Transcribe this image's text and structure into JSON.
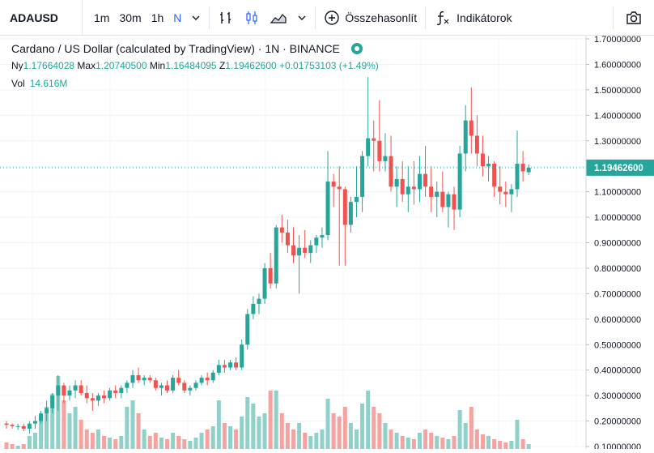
{
  "toolbar": {
    "symbol": "ADAUSD",
    "intervals": [
      {
        "label": "1m",
        "active": false
      },
      {
        "label": "30m",
        "active": false
      },
      {
        "label": "1h",
        "active": false
      },
      {
        "label": "N",
        "active": true
      }
    ],
    "compare_label": "Összehasonlít",
    "indicators_label": "Indikátorok"
  },
  "legend": {
    "title": "Cardano / US Dollar (calculated by TradingView) · 1N · BINANCE",
    "open_label": "Ny",
    "open_value": "1.17664028",
    "high_label": "Max",
    "high_value": "1.20740500",
    "low_label": "Min",
    "low_value": "1.16484095",
    "close_label": "Z",
    "close_value": "1.19462600",
    "change_value": "+0.01753103 (+1.49%)",
    "vol_label": "Vol",
    "vol_value": "14.616M"
  },
  "colors": {
    "up": "#26a69a",
    "down": "#ef5350",
    "up_vol": "#8fd1c9",
    "down_vol": "#f5a3a1"
  },
  "chart_data": {
    "type": "candlestick",
    "y_axis_ticks": [
      "1.70000000",
      "1.60000000",
      "1.50000000",
      "1.40000000",
      "1.30000000",
      "1.20000000",
      "1.10000000",
      "1.00000000",
      "0.90000000",
      "0.80000000",
      "0.70000000",
      "0.60000000",
      "0.50000000",
      "0.40000000",
      "0.30000000",
      "0.20000000",
      "0.10000000"
    ],
    "ylim": [
      0.1,
      1.7
    ],
    "last_price_label": "1.19462600",
    "last_price": 1.194626,
    "candles": [
      {
        "o": 0.19,
        "h": 0.2,
        "l": 0.17,
        "c": 0.185,
        "v": 0.04
      },
      {
        "o": 0.185,
        "h": 0.19,
        "l": 0.17,
        "c": 0.18,
        "v": 0.03
      },
      {
        "o": 0.18,
        "h": 0.19,
        "l": 0.165,
        "c": 0.18,
        "v": 0.02
      },
      {
        "o": 0.18,
        "h": 0.19,
        "l": 0.16,
        "c": 0.17,
        "v": 0.03
      },
      {
        "o": 0.17,
        "h": 0.2,
        "l": 0.15,
        "c": 0.19,
        "v": 0.08
      },
      {
        "o": 0.19,
        "h": 0.22,
        "l": 0.17,
        "c": 0.2,
        "v": 0.1
      },
      {
        "o": 0.2,
        "h": 0.24,
        "l": 0.19,
        "c": 0.23,
        "v": 0.2
      },
      {
        "o": 0.23,
        "h": 0.28,
        "l": 0.2,
        "c": 0.25,
        "v": 0.26
      },
      {
        "o": 0.25,
        "h": 0.31,
        "l": 0.23,
        "c": 0.3,
        "v": 0.34
      },
      {
        "o": 0.3,
        "h": 0.38,
        "l": 0.24,
        "c": 0.34,
        "v": 0.45
      },
      {
        "o": 0.34,
        "h": 0.35,
        "l": 0.27,
        "c": 0.3,
        "v": 0.3
      },
      {
        "o": 0.3,
        "h": 0.34,
        "l": 0.28,
        "c": 0.32,
        "v": 0.22
      },
      {
        "o": 0.32,
        "h": 0.36,
        "l": 0.29,
        "c": 0.34,
        "v": 0.26
      },
      {
        "o": 0.34,
        "h": 0.36,
        "l": 0.3,
        "c": 0.31,
        "v": 0.18
      },
      {
        "o": 0.31,
        "h": 0.34,
        "l": 0.27,
        "c": 0.29,
        "v": 0.12
      },
      {
        "o": 0.29,
        "h": 0.31,
        "l": 0.24,
        "c": 0.28,
        "v": 0.1
      },
      {
        "o": 0.28,
        "h": 0.31,
        "l": 0.26,
        "c": 0.3,
        "v": 0.12
      },
      {
        "o": 0.3,
        "h": 0.32,
        "l": 0.27,
        "c": 0.29,
        "v": 0.08
      },
      {
        "o": 0.29,
        "h": 0.33,
        "l": 0.28,
        "c": 0.32,
        "v": 0.07
      },
      {
        "o": 0.32,
        "h": 0.34,
        "l": 0.29,
        "c": 0.31,
        "v": 0.06
      },
      {
        "o": 0.31,
        "h": 0.34,
        "l": 0.29,
        "c": 0.33,
        "v": 0.08
      },
      {
        "o": 0.33,
        "h": 0.36,
        "l": 0.31,
        "c": 0.35,
        "v": 0.26
      },
      {
        "o": 0.35,
        "h": 0.4,
        "l": 0.33,
        "c": 0.38,
        "v": 0.3
      },
      {
        "o": 0.38,
        "h": 0.41,
        "l": 0.35,
        "c": 0.36,
        "v": 0.22
      },
      {
        "o": 0.36,
        "h": 0.38,
        "l": 0.34,
        "c": 0.37,
        "v": 0.12
      },
      {
        "o": 0.37,
        "h": 0.38,
        "l": 0.35,
        "c": 0.36,
        "v": 0.08
      },
      {
        "o": 0.36,
        "h": 0.37,
        "l": 0.32,
        "c": 0.33,
        "v": 0.1
      },
      {
        "o": 0.33,
        "h": 0.35,
        "l": 0.3,
        "c": 0.34,
        "v": 0.07
      },
      {
        "o": 0.34,
        "h": 0.36,
        "l": 0.31,
        "c": 0.32,
        "v": 0.06
      },
      {
        "o": 0.32,
        "h": 0.38,
        "l": 0.31,
        "c": 0.37,
        "v": 0.1
      },
      {
        "o": 0.37,
        "h": 0.4,
        "l": 0.34,
        "c": 0.35,
        "v": 0.08
      },
      {
        "o": 0.35,
        "h": 0.36,
        "l": 0.31,
        "c": 0.32,
        "v": 0.06
      },
      {
        "o": 0.32,
        "h": 0.34,
        "l": 0.3,
        "c": 0.33,
        "v": 0.05
      },
      {
        "o": 0.33,
        "h": 0.36,
        "l": 0.32,
        "c": 0.35,
        "v": 0.07
      },
      {
        "o": 0.35,
        "h": 0.38,
        "l": 0.34,
        "c": 0.37,
        "v": 0.1
      },
      {
        "o": 0.37,
        "h": 0.39,
        "l": 0.34,
        "c": 0.36,
        "v": 0.12
      },
      {
        "o": 0.36,
        "h": 0.4,
        "l": 0.35,
        "c": 0.39,
        "v": 0.14
      },
      {
        "o": 0.39,
        "h": 0.44,
        "l": 0.38,
        "c": 0.42,
        "v": 0.3
      },
      {
        "o": 0.42,
        "h": 0.44,
        "l": 0.39,
        "c": 0.41,
        "v": 0.16
      },
      {
        "o": 0.41,
        "h": 0.44,
        "l": 0.4,
        "c": 0.43,
        "v": 0.14
      },
      {
        "o": 0.43,
        "h": 0.45,
        "l": 0.4,
        "c": 0.41,
        "v": 0.12
      },
      {
        "o": 0.41,
        "h": 0.52,
        "l": 0.4,
        "c": 0.5,
        "v": 0.2
      },
      {
        "o": 0.5,
        "h": 0.64,
        "l": 0.48,
        "c": 0.62,
        "v": 0.32
      },
      {
        "o": 0.62,
        "h": 0.69,
        "l": 0.6,
        "c": 0.66,
        "v": 0.28
      },
      {
        "o": 0.66,
        "h": 0.7,
        "l": 0.62,
        "c": 0.68,
        "v": 0.2
      },
      {
        "o": 0.68,
        "h": 0.82,
        "l": 0.66,
        "c": 0.8,
        "v": 0.22
      },
      {
        "o": 0.8,
        "h": 0.86,
        "l": 0.72,
        "c": 0.74,
        "v": 0.36
      },
      {
        "o": 0.74,
        "h": 0.97,
        "l": 0.72,
        "c": 0.96,
        "v": 0.36
      },
      {
        "o": 0.96,
        "h": 1.01,
        "l": 0.9,
        "c": 0.94,
        "v": 0.22
      },
      {
        "o": 0.94,
        "h": 0.99,
        "l": 0.86,
        "c": 0.89,
        "v": 0.16
      },
      {
        "o": 0.89,
        "h": 0.96,
        "l": 0.82,
        "c": 0.85,
        "v": 0.12
      },
      {
        "o": 0.85,
        "h": 0.93,
        "l": 0.7,
        "c": 0.88,
        "v": 0.16
      },
      {
        "o": 0.88,
        "h": 0.95,
        "l": 0.84,
        "c": 0.86,
        "v": 0.1
      },
      {
        "o": 0.86,
        "h": 0.91,
        "l": 0.82,
        "c": 0.89,
        "v": 0.08
      },
      {
        "o": 0.89,
        "h": 0.93,
        "l": 0.86,
        "c": 0.92,
        "v": 0.1
      },
      {
        "o": 0.92,
        "h": 0.96,
        "l": 0.88,
        "c": 0.93,
        "v": 0.12
      },
      {
        "o": 0.93,
        "h": 1.26,
        "l": 0.91,
        "c": 1.14,
        "v": 0.31
      },
      {
        "o": 1.14,
        "h": 1.17,
        "l": 1.04,
        "c": 1.12,
        "v": 0.22
      },
      {
        "o": 1.12,
        "h": 1.2,
        "l": 0.81,
        "c": 1.11,
        "v": 0.2
      },
      {
        "o": 1.11,
        "h": 1.12,
        "l": 0.81,
        "c": 0.97,
        "v": 0.26
      },
      {
        "o": 0.97,
        "h": 1.08,
        "l": 0.94,
        "c": 1.06,
        "v": 0.16
      },
      {
        "o": 1.06,
        "h": 1.2,
        "l": 1.0,
        "c": 1.08,
        "v": 0.12
      },
      {
        "o": 1.08,
        "h": 1.26,
        "l": 1.02,
        "c": 1.24,
        "v": 0.28
      },
      {
        "o": 1.24,
        "h": 1.55,
        "l": 1.2,
        "c": 1.31,
        "v": 0.36
      },
      {
        "o": 1.31,
        "h": 1.38,
        "l": 1.18,
        "c": 1.3,
        "v": 0.26
      },
      {
        "o": 1.3,
        "h": 1.46,
        "l": 1.18,
        "c": 1.22,
        "v": 0.22
      },
      {
        "o": 1.22,
        "h": 1.33,
        "l": 1.18,
        "c": 1.24,
        "v": 0.16
      },
      {
        "o": 1.24,
        "h": 1.32,
        "l": 1.1,
        "c": 1.12,
        "v": 0.12
      },
      {
        "o": 1.12,
        "h": 1.2,
        "l": 1.04,
        "c": 1.15,
        "v": 0.1
      },
      {
        "o": 1.15,
        "h": 1.22,
        "l": 1.06,
        "c": 1.09,
        "v": 0.08
      },
      {
        "o": 1.09,
        "h": 1.2,
        "l": 1.02,
        "c": 1.12,
        "v": 0.07
      },
      {
        "o": 1.12,
        "h": 1.22,
        "l": 1.05,
        "c": 1.11,
        "v": 0.06
      },
      {
        "o": 1.11,
        "h": 1.24,
        "l": 1.06,
        "c": 1.17,
        "v": 0.1
      },
      {
        "o": 1.17,
        "h": 1.28,
        "l": 1.08,
        "c": 1.12,
        "v": 0.12
      },
      {
        "o": 1.12,
        "h": 1.2,
        "l": 1.02,
        "c": 1.08,
        "v": 0.1
      },
      {
        "o": 1.08,
        "h": 1.14,
        "l": 1.0,
        "c": 1.1,
        "v": 0.08
      },
      {
        "o": 1.1,
        "h": 1.18,
        "l": 1.02,
        "c": 1.04,
        "v": 0.07
      },
      {
        "o": 1.04,
        "h": 1.1,
        "l": 0.96,
        "c": 1.09,
        "v": 0.06
      },
      {
        "o": 1.09,
        "h": 1.12,
        "l": 0.95,
        "c": 1.03,
        "v": 0.08
      },
      {
        "o": 1.03,
        "h": 1.28,
        "l": 1.0,
        "c": 1.25,
        "v": 0.24
      },
      {
        "o": 1.25,
        "h": 1.44,
        "l": 1.18,
        "c": 1.38,
        "v": 0.16
      },
      {
        "o": 1.38,
        "h": 1.51,
        "l": 1.25,
        "c": 1.32,
        "v": 0.26
      },
      {
        "o": 1.32,
        "h": 1.4,
        "l": 1.2,
        "c": 1.25,
        "v": 0.12
      },
      {
        "o": 1.25,
        "h": 1.32,
        "l": 1.16,
        "c": 1.2,
        "v": 0.09
      },
      {
        "o": 1.2,
        "h": 1.24,
        "l": 1.14,
        "c": 1.21,
        "v": 0.08
      },
      {
        "o": 1.21,
        "h": 1.22,
        "l": 1.08,
        "c": 1.12,
        "v": 0.06
      },
      {
        "o": 1.12,
        "h": 1.2,
        "l": 1.05,
        "c": 1.1,
        "v": 0.05
      },
      {
        "o": 1.1,
        "h": 1.14,
        "l": 1.04,
        "c": 1.09,
        "v": 0.04
      },
      {
        "o": 1.09,
        "h": 1.13,
        "l": 1.02,
        "c": 1.11,
        "v": 0.05
      },
      {
        "o": 1.11,
        "h": 1.34,
        "l": 1.08,
        "c": 1.21,
        "v": 0.18
      },
      {
        "o": 1.21,
        "h": 1.26,
        "l": 1.14,
        "c": 1.18,
        "v": 0.06
      },
      {
        "o": 1.17664,
        "h": 1.207405,
        "l": 1.164841,
        "c": 1.194626,
        "v": 0.03
      }
    ]
  }
}
